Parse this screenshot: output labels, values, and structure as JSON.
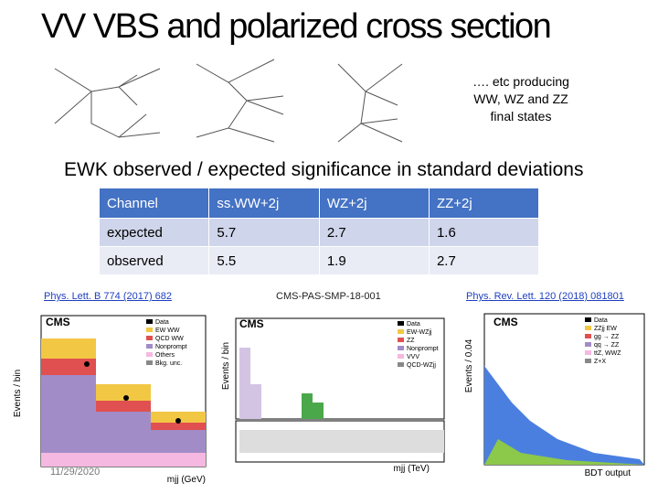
{
  "header": {
    "title": "VV VBS and polarized cross section"
  },
  "note": [
    "…. etc producing",
    "WW, WZ and ZZ",
    "final states"
  ],
  "subtitle": "EWK observed / expected significance in standard deviations",
  "table": {
    "header": [
      "Channel",
      "ss.WW+2j",
      "WZ+2j",
      "ZZ+2j"
    ],
    "rows": [
      [
        "expected",
        "5.7",
        "2.7",
        "1.6"
      ],
      [
        "observed",
        "5.5",
        "1.9",
        "2.7"
      ]
    ]
  },
  "references": [
    "Phys. Lett. B 774 (2017) 682",
    "CMS-PAS-SMP-18-001",
    "Phys. Rev. Lett. 120 (2018) 081801"
  ],
  "plots": [
    {
      "label": "CMS",
      "y_title": "Events / bin",
      "x_title": "mjj (GeV)",
      "legend": [
        "Data",
        "EW WW",
        "QCD WW",
        "Nonprompt",
        "Others",
        "Bkg. unc."
      ]
    },
    {
      "label": "CMS",
      "y_title": "Events / bin",
      "x_title": "mjj (TeV)",
      "legend": [
        "Data",
        "EW-WZjj",
        "ZZ",
        "Nonprompt",
        "VVV",
        "QCD-WZjj"
      ]
    },
    {
      "label": "CMS",
      "y_title": "Events / 0.04",
      "x_title": "BDT output",
      "legend": [
        "Data",
        "ZZjj EW",
        "gg → ZZ",
        "qq → ZZ",
        "ttZ, WWZ",
        "Z+X"
      ]
    }
  ],
  "date": "11/29/2020"
}
